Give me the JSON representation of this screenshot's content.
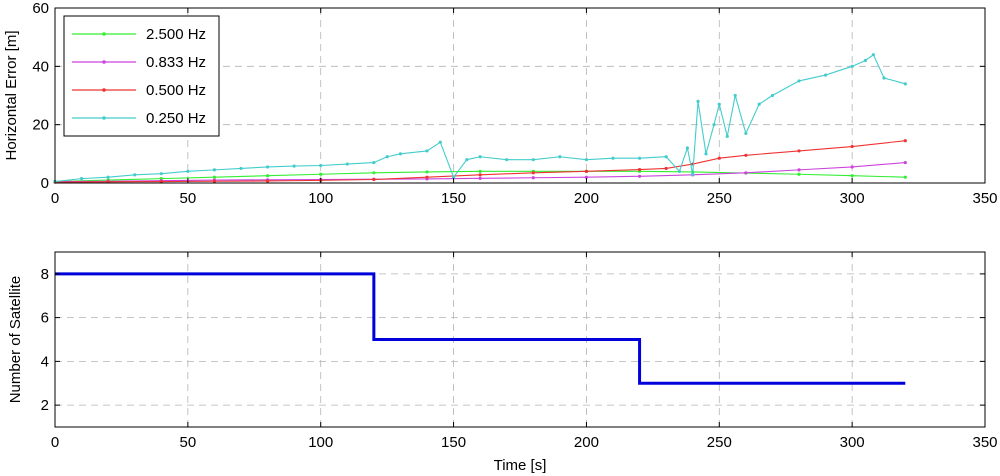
{
  "chart_data": [
    {
      "type": "line",
      "xlabel": "",
      "ylabel": "Horizontal Error [m]",
      "xlim": [
        0,
        350
      ],
      "ylim": [
        0,
        60
      ],
      "xticks": [
        "0",
        "50",
        "100",
        "150",
        "200",
        "250",
        "300",
        "350"
      ],
      "yticks": [
        "0",
        "20",
        "40",
        "60"
      ],
      "grid": true,
      "legend_position": "top-left",
      "series": [
        {
          "name": "2.500 Hz",
          "color": "#33ee33",
          "x": [
            0,
            20,
            40,
            60,
            80,
            100,
            120,
            140,
            160,
            180,
            200,
            220,
            240,
            260,
            280,
            300,
            320
          ],
          "values": [
            0.5,
            1.0,
            1.5,
            2.0,
            2.5,
            3.0,
            3.5,
            3.8,
            4.0,
            4.0,
            4.0,
            4.0,
            3.8,
            3.4,
            3.0,
            2.5,
            2.0
          ]
        },
        {
          "name": "0.833 Hz",
          "color": "#cc44dd",
          "x": [
            0,
            20,
            40,
            60,
            80,
            100,
            120,
            140,
            160,
            180,
            200,
            220,
            240,
            260,
            280,
            300,
            320
          ],
          "values": [
            0.5,
            0.6,
            0.8,
            1.0,
            1.1,
            1.2,
            1.3,
            1.4,
            1.6,
            1.8,
            2.0,
            2.3,
            2.8,
            3.5,
            4.5,
            5.5,
            7.0
          ]
        },
        {
          "name": "0.500 Hz",
          "color": "#ee3333",
          "x": [
            0,
            20,
            40,
            60,
            80,
            100,
            120,
            140,
            160,
            180,
            200,
            220,
            230,
            240,
            250,
            260,
            280,
            300,
            320
          ],
          "values": [
            0.3,
            0.4,
            0.5,
            0.6,
            0.7,
            0.9,
            1.2,
            2.0,
            2.8,
            3.5,
            4.0,
            4.6,
            5.0,
            6.5,
            8.5,
            9.5,
            11.0,
            12.5,
            14.5
          ]
        },
        {
          "name": "0.250 Hz",
          "color": "#44cccc",
          "x": [
            0,
            10,
            20,
            30,
            40,
            50,
            60,
            70,
            80,
            90,
            100,
            110,
            120,
            125,
            130,
            140,
            145,
            150,
            155,
            160,
            170,
            180,
            190,
            200,
            210,
            220,
            230,
            235,
            238,
            240,
            242,
            245,
            248,
            250,
            253,
            256,
            260,
            265,
            270,
            280,
            290,
            300,
            305,
            308,
            312,
            320
          ],
          "values": [
            0.5,
            1.5,
            2.0,
            2.8,
            3.2,
            4.0,
            4.5,
            5.0,
            5.5,
            5.8,
            6.0,
            6.5,
            7.0,
            9.0,
            10.0,
            11.0,
            14.0,
            2.0,
            8.0,
            9.0,
            8.0,
            8.0,
            9.0,
            8.0,
            8.5,
            8.5,
            9.0,
            4.0,
            12.0,
            3.0,
            28.0,
            10.0,
            20.0,
            27.0,
            16.0,
            30.0,
            17.0,
            27.0,
            30.0,
            35.0,
            37.0,
            40.0,
            42.0,
            44.0,
            36.0,
            34.0
          ]
        }
      ]
    },
    {
      "type": "line",
      "xlabel": "Time [s]",
      "ylabel": "Number of Satellite",
      "xlim": [
        0,
        350
      ],
      "ylim": [
        1,
        9
      ],
      "xticks": [
        "0",
        "50",
        "100",
        "150",
        "200",
        "250",
        "300",
        "350"
      ],
      "yticks": [
        "2",
        "4",
        "6",
        "8"
      ],
      "grid": true,
      "series": [
        {
          "color": "#0000dd",
          "step": true,
          "x": [
            0,
            120,
            120,
            220,
            220,
            320
          ],
          "values": [
            8,
            8,
            5,
            5,
            3,
            3
          ]
        }
      ]
    }
  ]
}
